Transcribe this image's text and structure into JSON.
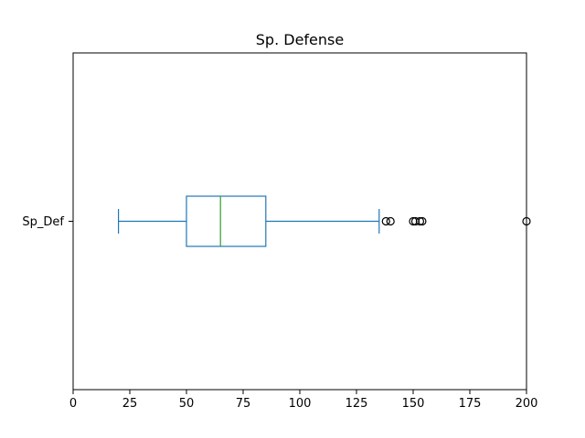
{
  "chart_data": {
    "type": "boxplot",
    "orientation": "horizontal",
    "title": "Sp. Defense",
    "xlabel": "",
    "ylabel": "",
    "xlim": [
      0,
      200
    ],
    "x_ticks": [
      0,
      25,
      50,
      75,
      100,
      125,
      150,
      175,
      200
    ],
    "categories": [
      "Sp_Def"
    ],
    "series": [
      {
        "name": "Sp_Def",
        "whisker_low": 20,
        "q1": 50,
        "median": 65,
        "q3": 85,
        "whisker_high": 135,
        "outliers": [
          138,
          140,
          150,
          151,
          153,
          154,
          200
        ]
      }
    ],
    "grid": false,
    "colors": {
      "box": "#1f77b4",
      "median": "#2ca02c",
      "flier": "#000000"
    }
  }
}
